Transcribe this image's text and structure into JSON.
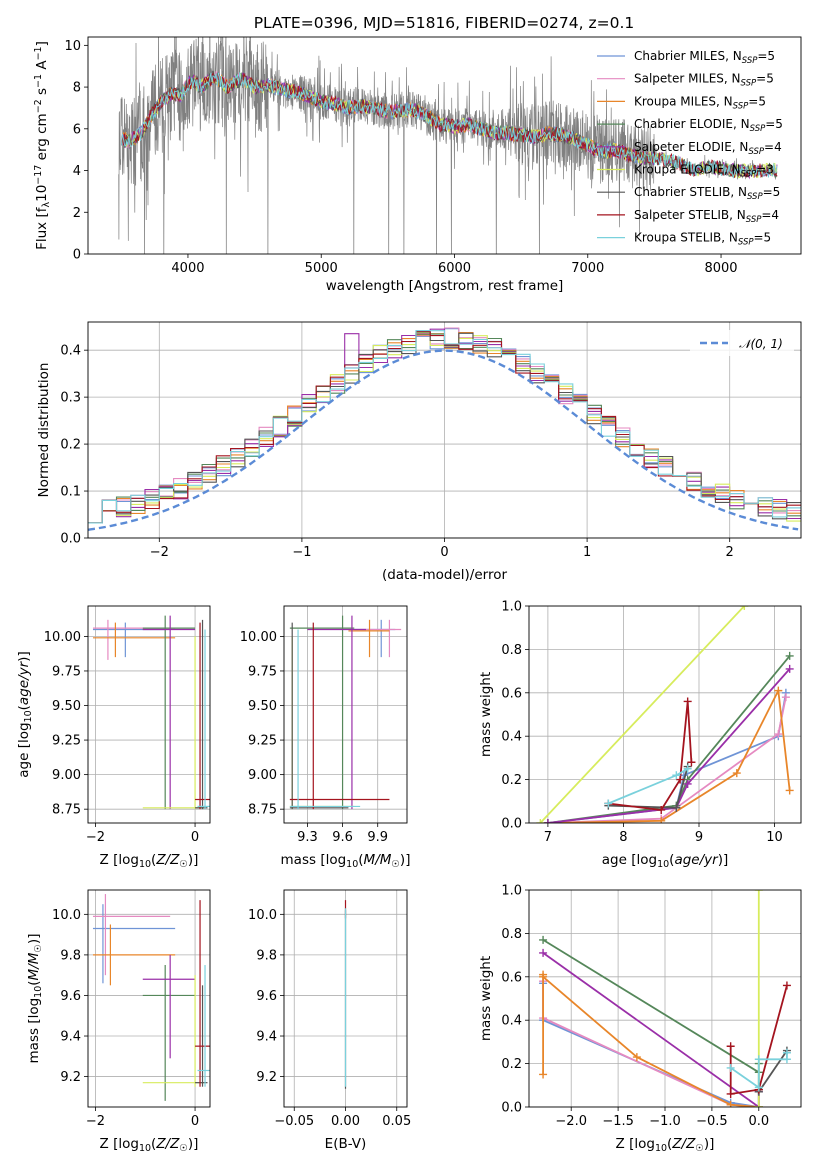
{
  "figure_title": "PLATE=0396, MJD=51816, FIBERID=0274, z=0.1",
  "colors": {
    "Chabrier MILES": "#6f94d6",
    "Salpeter MILES": "#e58ac1",
    "Kroupa MILES": "#e8862a",
    "Chabrier ELODIE": "#55875a",
    "Salpeter ELODIE": "#9a2fa8",
    "Kroupa ELODIE": "#d7ec5d",
    "Chabrier STELIB": "#555555",
    "Salpeter STELIB": "#a4141f",
    "Kroupa STELIB": "#7ad1dc",
    "data": "#808080",
    "normal": "#5b8bd6"
  },
  "legend_entries": [
    {
      "base": "Chabrier MILES, N",
      "sub": "SSP",
      "tail": "=5"
    },
    {
      "base": "Salpeter MILES, N",
      "sub": "SSP",
      "tail": "=5"
    },
    {
      "base": "Kroupa MILES, N",
      "sub": "SSP",
      "tail": "=5"
    },
    {
      "base": "Chabrier ELODIE, N",
      "sub": "SSP",
      "tail": "=5"
    },
    {
      "base": "Salpeter ELODIE, N",
      "sub": "SSP",
      "tail": "=4"
    },
    {
      "base": "Kroupa ELODIE, N",
      "sub": "SSP",
      "tail": "=3"
    },
    {
      "base": "Chabrier STELIB, N",
      "sub": "SSP",
      "tail": "=5"
    },
    {
      "base": "Salpeter STELIB, N",
      "sub": "SSP",
      "tail": "=4"
    },
    {
      "base": "Kroupa STELIB, N",
      "sub": "SSP",
      "tail": "=5"
    }
  ],
  "chart_data": [
    {
      "id": "spectrum",
      "type": "line",
      "xlabel": "wavelength [Angstrom, rest frame]",
      "ylabel": "Flux [fλ10⁻¹⁷ erg cm⁻² s⁻¹ A⁻¹]",
      "xlim": [
        3250,
        8600
      ],
      "ylim": [
        0,
        10.4
      ],
      "xticks": [
        4000,
        5000,
        6000,
        7000,
        8000
      ],
      "yticks": [
        0,
        2,
        4,
        6,
        8,
        10
      ],
      "continuum": [
        [
          3480,
          5.6
        ],
        [
          3560,
          5.4
        ],
        [
          3650,
          5.8
        ],
        [
          3720,
          6.6
        ],
        [
          3800,
          7.3
        ],
        [
          3880,
          7.7
        ],
        [
          3950,
          7.6
        ],
        [
          4000,
          8.2
        ],
        [
          4050,
          8.3
        ],
        [
          4100,
          8.0
        ],
        [
          4200,
          8.5
        ],
        [
          4300,
          8.0
        ],
        [
          4400,
          8.4
        ],
        [
          4500,
          8.0
        ],
        [
          4600,
          8.1
        ],
        [
          4700,
          7.9
        ],
        [
          4800,
          7.8
        ],
        [
          4900,
          7.6
        ],
        [
          5000,
          7.3
        ],
        [
          5100,
          7.2
        ],
        [
          5200,
          7.0
        ],
        [
          5300,
          7.1
        ],
        [
          5400,
          7.0
        ],
        [
          5500,
          6.8
        ],
        [
          5600,
          6.9
        ],
        [
          5700,
          6.9
        ],
        [
          5800,
          6.6
        ],
        [
          5900,
          6.2
        ],
        [
          6000,
          6.1
        ],
        [
          6100,
          6.2
        ],
        [
          6200,
          6.0
        ],
        [
          6300,
          5.8
        ],
        [
          6400,
          5.8
        ],
        [
          6500,
          5.7
        ],
        [
          6600,
          5.6
        ],
        [
          6700,
          5.8
        ],
        [
          6800,
          5.7
        ],
        [
          6900,
          5.5
        ],
        [
          7000,
          5.2
        ],
        [
          7100,
          4.9
        ],
        [
          7200,
          5.0
        ],
        [
          7300,
          4.8
        ],
        [
          7400,
          4.6
        ],
        [
          7500,
          4.6
        ],
        [
          7600,
          4.5
        ],
        [
          7700,
          4.3
        ],
        [
          7800,
          4.0
        ],
        [
          7900,
          4.2
        ],
        [
          8000,
          4.1
        ],
        [
          8100,
          4.0
        ],
        [
          8200,
          4.0
        ],
        [
          8300,
          4.0
        ],
        [
          8400,
          4.0
        ]
      ]
    },
    {
      "id": "residuals",
      "type": "histogram",
      "xlabel": "(data-model)/error",
      "ylabel": "Normed distribution",
      "xlim": [
        -2.5,
        2.5
      ],
      "ylim": [
        0,
        0.46
      ],
      "xticks": [
        -2,
        -1,
        0,
        1,
        2
      ],
      "yticks": [
        0.0,
        0.1,
        0.2,
        0.3,
        0.4
      ],
      "legend_label": "N(0,1)",
      "bin_width": 0.1
    },
    {
      "id": "age-vs-Z",
      "type": "errorbar",
      "xlabel": "Z [log10(Z/Z☉)]",
      "ylabel": "age  [log10(age/yr)]",
      "xlim": [
        -2.15,
        0.3
      ],
      "ylim": [
        8.65,
        10.22
      ],
      "xticks": [
        -2,
        0
      ],
      "yticks": [
        8.75,
        9.0,
        9.25,
        9.5,
        9.75,
        10.0
      ],
      "points": [
        {
          "model": "Chabrier MILES",
          "x": -1.4,
          "y": 10.05,
          "x0": -2.05,
          "x1": -0.6,
          "y0": 9.85,
          "y1": 10.1
        },
        {
          "model": "Salpeter MILES",
          "x": -1.75,
          "y": 10.06,
          "x0": -2.05,
          "x1": -0.4,
          "y0": 9.83,
          "y1": 10.12
        },
        {
          "model": "Kroupa MILES",
          "x": -1.6,
          "y": 9.99,
          "x0": -2.05,
          "x1": -0.4,
          "y0": 9.85,
          "y1": 10.1
        },
        {
          "model": "Chabrier ELODIE",
          "x": -0.6,
          "y": 10.06,
          "x0": -1.05,
          "x1": 0.0,
          "y0": 8.75,
          "y1": 10.15
        },
        {
          "model": "Salpeter ELODIE",
          "x": -0.5,
          "y": 10.05,
          "x0": -1.05,
          "x1": 0.0,
          "y0": 8.75,
          "y1": 10.15
        },
        {
          "model": "Kroupa ELODIE",
          "x": 0.0,
          "y": 8.76,
          "x0": -1.05,
          "x1": 0.2,
          "y0": 8.75,
          "y1": 10.0
        },
        {
          "model": "Chabrier STELIB",
          "x": 0.15,
          "y": 8.76,
          "x0": 0.0,
          "x1": 0.25,
          "y0": 8.75,
          "y1": 10.12
        },
        {
          "model": "Salpeter STELIB",
          "x": 0.1,
          "y": 8.82,
          "x0": 0.0,
          "x1": 0.3,
          "y0": 8.75,
          "y1": 10.1
        },
        {
          "model": "Kroupa STELIB",
          "x": 0.2,
          "y": 8.77,
          "x0": 0.05,
          "x1": 0.3,
          "y0": 8.75,
          "y1": 10.05
        }
      ]
    },
    {
      "id": "age-vs-mass",
      "type": "errorbar",
      "xlabel": "mass [log10(M/M☉)]",
      "ylabel": "",
      "xlim": [
        9.1,
        10.15
      ],
      "ylim": [
        8.65,
        10.22
      ],
      "xticks": [
        9.3,
        9.6,
        9.9
      ],
      "yticks": [
        8.75,
        9.0,
        9.25,
        9.5,
        9.75,
        10.0
      ],
      "points": [
        {
          "model": "Chabrier MILES",
          "x": 9.93,
          "y": 10.05,
          "x0": 9.7,
          "x1": 10.05,
          "y0": 9.85,
          "y1": 10.12
        },
        {
          "model": "Salpeter MILES",
          "x": 10.0,
          "y": 10.05,
          "x0": 9.75,
          "x1": 10.1,
          "y0": 9.85,
          "y1": 10.12
        },
        {
          "model": "Kroupa MILES",
          "x": 9.83,
          "y": 10.04,
          "x0": 9.65,
          "x1": 10.0,
          "y0": 9.85,
          "y1": 10.12
        },
        {
          "model": "Chabrier ELODIE",
          "x": 9.6,
          "y": 10.06,
          "x0": 9.15,
          "x1": 9.7,
          "y0": 8.75,
          "y1": 10.15
        },
        {
          "model": "Salpeter ELODIE",
          "x": 9.68,
          "y": 10.05,
          "x0": 9.3,
          "x1": 9.8,
          "y0": 8.75,
          "y1": 10.15
        },
        {
          "model": "Kroupa ELODIE",
          "x": 9.17,
          "y": 8.77,
          "x0": 9.15,
          "x1": 9.7,
          "y0": 8.75,
          "y1": 10.0
        },
        {
          "model": "Chabrier STELIB",
          "x": 9.17,
          "y": 8.76,
          "x0": 9.15,
          "x1": 9.65,
          "y0": 8.75,
          "y1": 10.1
        },
        {
          "model": "Salpeter STELIB",
          "x": 9.35,
          "y": 8.82,
          "x0": 9.15,
          "x1": 10.0,
          "y0": 8.75,
          "y1": 10.1
        },
        {
          "model": "Kroupa STELIB",
          "x": 9.22,
          "y": 8.77,
          "x0": 9.15,
          "x1": 9.75,
          "y0": 8.75,
          "y1": 10.05
        }
      ]
    },
    {
      "id": "mass-weight-vs-age",
      "type": "line",
      "xlabel": "age  [log10(age/yr)]",
      "ylabel": "mass weight",
      "xlim": [
        6.75,
        10.35
      ],
      "ylim": [
        0,
        1.0
      ],
      "xticks": [
        7,
        8,
        9,
        10
      ],
      "yticks": [
        0.0,
        0.2,
        0.4,
        0.6,
        0.8,
        1.0
      ],
      "series": [
        {
          "model": "Chabrier MILES",
          "x": [
            7.0,
            8.7,
            8.8,
            10.05,
            10.15
          ],
          "y": [
            0.0,
            0.07,
            0.22,
            0.4,
            0.6
          ]
        },
        {
          "model": "Salpeter MILES",
          "x": [
            7.0,
            8.5,
            8.7,
            10.05,
            10.15
          ],
          "y": [
            0.0,
            0.02,
            0.07,
            0.41,
            0.58
          ]
        },
        {
          "model": "Kroupa MILES",
          "x": [
            7.0,
            8.5,
            9.5,
            10.05,
            10.2
          ],
          "y": [
            0.0,
            0.01,
            0.23,
            0.61,
            0.15
          ]
        },
        {
          "model": "Chabrier ELODIE",
          "x": [
            7.0,
            8.7,
            8.85,
            10.2
          ],
          "y": [
            0.0,
            0.08,
            0.2,
            0.77
          ]
        },
        {
          "model": "Salpeter ELODIE",
          "x": [
            7.0,
            8.7,
            8.85,
            10.2
          ],
          "y": [
            0.0,
            0.07,
            0.18,
            0.71
          ]
        },
        {
          "model": "Kroupa ELODIE",
          "x": [
            6.9,
            9.6
          ],
          "y": [
            0.0,
            1.0
          ]
        },
        {
          "model": "Chabrier STELIB",
          "x": [
            7.8,
            8.7,
            8.85
          ],
          "y": [
            0.08,
            0.07,
            0.26
          ]
        },
        {
          "model": "Salpeter STELIB",
          "x": [
            7.8,
            8.5,
            8.75,
            8.85,
            8.9
          ],
          "y": [
            0.09,
            0.06,
            0.2,
            0.56,
            0.28
          ]
        },
        {
          "model": "Kroupa STELIB",
          "x": [
            7.8,
            8.7,
            8.85
          ],
          "y": [
            0.09,
            0.22,
            0.25
          ]
        }
      ]
    },
    {
      "id": "mass-vs-Z",
      "type": "errorbar",
      "xlabel": "Z [log10(Z/Z☉)]",
      "ylabel": "mass [log10(M/M☉)]",
      "xlim": [
        -2.15,
        0.3
      ],
      "ylim": [
        9.05,
        10.12
      ],
      "xticks": [
        -2,
        0
      ],
      "yticks": [
        9.2,
        9.4,
        9.6,
        9.8,
        10.0
      ],
      "points": [
        {
          "model": "Chabrier MILES",
          "x": -1.85,
          "y": 9.93,
          "x0": -2.05,
          "x1": -0.4,
          "y0": 9.66,
          "y1": 10.05
        },
        {
          "model": "Salpeter MILES",
          "x": -1.8,
          "y": 9.99,
          "x0": -2.05,
          "x1": -0.5,
          "y0": 9.7,
          "y1": 10.1
        },
        {
          "model": "Kroupa MILES",
          "x": -1.7,
          "y": 9.8,
          "x0": -2.05,
          "x1": -0.4,
          "y0": 9.65,
          "y1": 9.95
        },
        {
          "model": "Chabrier ELODIE",
          "x": -0.6,
          "y": 9.6,
          "x0": -1.05,
          "x1": 0.0,
          "y0": 9.08,
          "y1": 9.75
        },
        {
          "model": "Salpeter ELODIE",
          "x": -0.5,
          "y": 9.68,
          "x0": -1.05,
          "x1": 0.0,
          "y0": 9.29,
          "y1": 9.8
        },
        {
          "model": "Kroupa ELODIE",
          "x": 0.0,
          "y": 9.17,
          "x0": -1.05,
          "x1": 0.2,
          "y0": 9.15,
          "y1": 9.7
        },
        {
          "model": "Chabrier STELIB",
          "x": 0.15,
          "y": 9.17,
          "x0": 0.0,
          "x1": 0.25,
          "y0": 9.15,
          "y1": 9.65
        },
        {
          "model": "Salpeter STELIB",
          "x": 0.1,
          "y": 9.35,
          "x0": 0.0,
          "x1": 0.3,
          "y0": 9.15,
          "y1": 10.07
        },
        {
          "model": "Kroupa STELIB",
          "x": 0.2,
          "y": 9.23,
          "x0": 0.05,
          "x1": 0.3,
          "y0": 9.15,
          "y1": 9.75
        }
      ]
    },
    {
      "id": "mass-vs-ebv",
      "type": "errorbar",
      "xlabel": "E(B-V)",
      "ylabel": "",
      "xlim": [
        -0.06,
        0.06
      ],
      "ylim": [
        9.05,
        10.12
      ],
      "xticks": [
        -0.05,
        0.0,
        0.05
      ],
      "xtick_labels": [
        "−0.05",
        "0.00",
        "0.05"
      ],
      "yticks": [
        9.2,
        9.4,
        9.6,
        9.8,
        10.0
      ],
      "points": [
        {
          "model": "Chabrier STELIB",
          "x": 0.0,
          "y": 9.6,
          "x0": 0.0,
          "x1": 0.0,
          "y0": 9.14,
          "y1": 10.02
        },
        {
          "model": "Salpeter STELIB",
          "x": 0.0,
          "y": 9.6,
          "x0": 0.0,
          "x1": 0.0,
          "y0": 9.98,
          "y1": 10.07
        },
        {
          "model": "Kroupa STELIB",
          "x": 0.0,
          "y": 9.6,
          "x0": 0.0,
          "x1": 0.0,
          "y0": 9.15,
          "y1": 10.03
        }
      ]
    },
    {
      "id": "mass-weight-vs-Z",
      "type": "line",
      "xlabel": "Z [log10(Z/Z☉)]",
      "ylabel": "mass weight",
      "xlim": [
        -2.45,
        0.45
      ],
      "ylim": [
        0,
        1.0
      ],
      "xticks": [
        -2.0,
        -1.5,
        -1.0,
        -0.5,
        0.0
      ],
      "xtick_labels": [
        "−2.0",
        "−1.5",
        "−1.0",
        "−0.5",
        "0.0"
      ],
      "yticks": [
        0.0,
        0.2,
        0.4,
        0.6,
        0.8,
        1.0
      ],
      "series": [
        {
          "model": "Chabrier MILES",
          "x": [
            -2.3,
            -2.3,
            -0.3,
            0.0,
            0.0
          ],
          "y": [
            0.57,
            0.4,
            0.02,
            0.0,
            0.07
          ]
        },
        {
          "model": "Salpeter MILES",
          "x": [
            -2.3,
            -2.3,
            -0.3,
            0.0
          ],
          "y": [
            0.58,
            0.41,
            0.01,
            0.0
          ]
        },
        {
          "model": "Kroupa MILES",
          "x": [
            -2.3,
            -2.3,
            -2.3,
            -1.3,
            -0.3,
            0.0
          ],
          "y": [
            0.15,
            0.61,
            0.6,
            0.23,
            0.01,
            0.0
          ]
        },
        {
          "model": "Chabrier ELODIE",
          "x": [
            -2.3,
            0.0,
            0.0,
            0.0
          ],
          "y": [
            0.77,
            0.16,
            0.08,
            0.2
          ]
        },
        {
          "model": "Salpeter ELODIE",
          "x": [
            -2.3,
            0.0,
            0.0
          ],
          "y": [
            0.71,
            0.0,
            0.07
          ]
        },
        {
          "model": "Kroupa ELODIE",
          "x": [
            0.0,
            0.0,
            0.0
          ],
          "y": [
            0.0,
            1.0,
            0.0
          ]
        },
        {
          "model": "Chabrier STELIB",
          "x": [
            0.3,
            0.0,
            0.0
          ],
          "y": [
            0.26,
            0.07,
            0.08
          ]
        },
        {
          "model": "Salpeter STELIB",
          "x": [
            -0.3,
            -0.3,
            0.0,
            0.3
          ],
          "y": [
            0.28,
            0.06,
            0.08,
            0.56
          ]
        },
        {
          "model": "Kroupa STELIB",
          "x": [
            -0.3,
            0.0,
            0.0,
            0.3,
            0.3
          ],
          "y": [
            0.18,
            0.09,
            0.22,
            0.22,
            0.25
          ]
        }
      ]
    }
  ]
}
